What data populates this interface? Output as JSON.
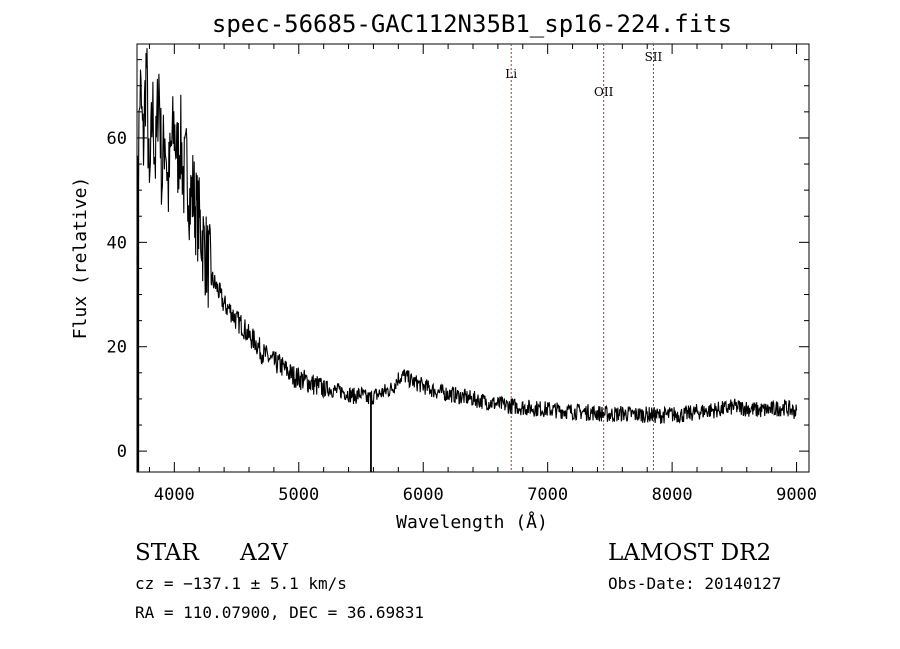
{
  "chart_data": {
    "type": "line",
    "title": "spec-56685-GAC112N35B1_sp16-224.fits",
    "xlabel": "Wavelength (Å)",
    "ylabel": "Flux (relative)",
    "xlim": [
      3700,
      9100
    ],
    "ylim": [
      -4,
      78
    ],
    "xticks": [
      4000,
      5000,
      6000,
      7000,
      8000,
      9000
    ],
    "yticks": [
      0,
      20,
      40,
      60
    ],
    "grid": false,
    "series": [
      {
        "x": [
          3700,
          3725,
          3750,
          3775,
          3800,
          3825,
          3850,
          3875,
          3900,
          3925,
          3950,
          3975,
          4000,
          4025,
          4050,
          4075,
          4100,
          4125,
          4150,
          4175,
          4200,
          4250,
          4300,
          4350,
          4400,
          4450,
          4500,
          4550,
          4600,
          4650,
          4700,
          4750,
          4800,
          4850,
          4900,
          4950,
          5000,
          5050,
          5100,
          5150,
          5200,
          5250,
          5300,
          5350,
          5400,
          5450,
          5500,
          5550,
          5600,
          5650,
          5700,
          5750,
          5800,
          5850,
          5900,
          5950,
          6000,
          6100,
          6200,
          6300,
          6400,
          6500,
          6600,
          6700,
          6800,
          6900,
          7000,
          7100,
          7200,
          7300,
          7400,
          7500,
          7600,
          7700,
          7800,
          7900,
          8000,
          8100,
          8200,
          8300,
          8400,
          8500,
          8600,
          8700,
          8800,
          8900,
          9000
        ],
        "y": [
          45,
          70,
          58,
          75,
          48,
          66,
          55,
          72,
          52,
          62,
          50,
          58,
          62,
          56,
          60,
          52,
          55,
          48,
          50,
          46,
          44,
          38,
          33,
          31,
          28,
          27,
          25,
          24,
          22,
          21,
          19,
          18,
          17,
          16.5,
          15.5,
          14.5,
          14,
          13.5,
          13,
          12.5,
          12,
          12,
          11.5,
          11.5,
          11,
          10.5,
          11,
          10,
          10.5,
          11,
          11.5,
          12,
          14,
          14.5,
          13.5,
          13,
          12.5,
          11.5,
          11,
          10.5,
          10,
          9.5,
          9,
          8.7,
          8.4,
          8.2,
          8,
          7.8,
          7.6,
          7.5,
          7.3,
          7,
          7.2,
          7,
          7,
          6.8,
          7,
          7,
          7.5,
          7.8,
          8,
          8.5,
          8.2,
          7.8,
          8,
          8.4,
          7.5
        ]
      }
    ],
    "glitches": [
      {
        "x": 3710,
        "y": -4
      },
      {
        "x": 5580,
        "y": -4
      }
    ],
    "line_markers": [
      {
        "label": "Li",
        "x": 6707
      },
      {
        "label": "OII",
        "x": 7450
      },
      {
        "label": "SII",
        "x": 7850
      }
    ],
    "colors": {
      "spectrum": "#000000",
      "marker": "#b03030"
    }
  },
  "info": {
    "object_class": "STAR",
    "subclass": "A2V",
    "survey": "LAMOST DR2",
    "cz": "cz = −137.1 ± 5.1 km/s",
    "obs_date": "Obs-Date: 20140127",
    "coords": "RA = 110.07900, DEC =  36.69831"
  }
}
